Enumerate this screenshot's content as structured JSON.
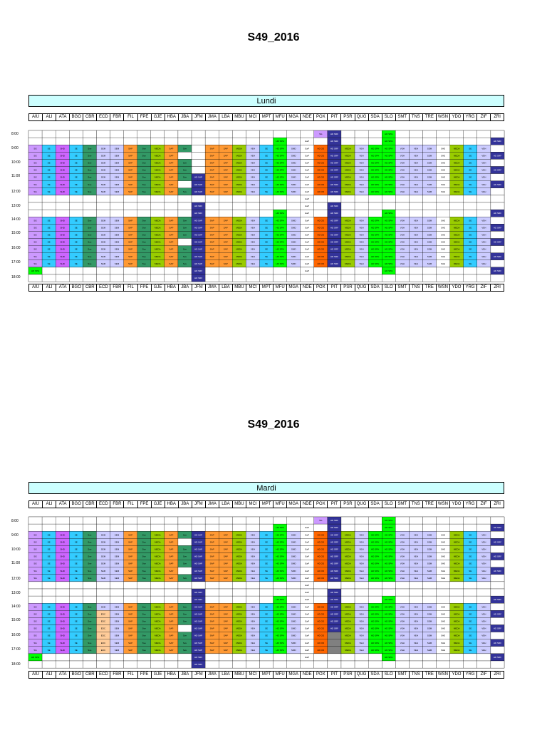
{
  "sections": [
    {
      "title": "S49_2016",
      "day": "Lundi"
    },
    {
      "title": "S49_2016",
      "day": "Mardi"
    }
  ],
  "codes": [
    "AIU",
    "ALI",
    "ATA",
    "BGO",
    "CBR",
    "ECD",
    "FBR",
    "FIL",
    "FPE",
    "GJE",
    "HBA",
    "JBA",
    "JFM",
    "JMA",
    "LBA",
    "MBU",
    "MCI",
    "MPT",
    "MFU",
    "MGA",
    "NDE",
    "POX",
    "PIT",
    "PSR",
    "QUG",
    "SDA",
    "SLO",
    "SMT",
    "TNS",
    "TRE",
    "WSN",
    "YDO",
    "YRG",
    "ZIF",
    "ZRI"
  ],
  "time_labels": [
    "8:00",
    "9:00",
    "10:00",
    "11:00",
    "12:00",
    "13:00",
    "14:00",
    "15:00",
    "16:00",
    "17:00",
    "18:00"
  ],
  "palette": {
    "SG": "#cc99ff",
    "SE": "#33ccff",
    "SHD": "#cc66ff",
    "Sve": "#339966",
    "SEM": "#ccccff",
    "SAP": "#ff9933",
    "MEDA": "#99cc00",
    "VEH": "#ccccff",
    "HEW": "#ffcc99",
    "HDWF": "#00ff00",
    "SMD": "#ccccff",
    "EaP": "#ffffff",
    "OD": "#ff6600",
    "SDF": "#333399",
    "SVH": "#ccccff",
    "DOC": "#cc99ff",
    "EDC": "#ffcc99",
    "GRIS": "#808080"
  },
  "slot_labels": [
    "SG",
    "SE",
    "SHD",
    "SE",
    "Sve",
    "SEM",
    "SEM",
    "SAP",
    "Sve",
    "MEDA",
    "SAP",
    "Sve",
    "HD SAP",
    "SAP",
    "SAP",
    "MEDA",
    "VEH",
    "SE",
    "HD SPH",
    "SMD",
    "EaP",
    "HD OD",
    "HD SRF",
    "MEDA",
    "VEH",
    "HD SPH",
    "HD SPH",
    "VEH",
    "VEH",
    "SEM",
    "SHE",
    "MEDA",
    "SE",
    "VEH",
    "HD SRF"
  ],
  "lundi": {
    "rows_filled": {
      "8:00": [
        [
          "SG",
          21
        ],
        [
          "HD SRF",
          22
        ],
        [
          "HDWF",
          26
        ],
        [
          "HD SRF",
          34
        ],
        [
          "HDWF",
          18
        ]
      ],
      "17:00": [
        [
          "HDWF",
          0
        ],
        [
          "HD SRF",
          12
        ],
        [
          "HDWF",
          26
        ]
      ]
    }
  },
  "mardi": {
    "edc_label": "EDC"
  }
}
